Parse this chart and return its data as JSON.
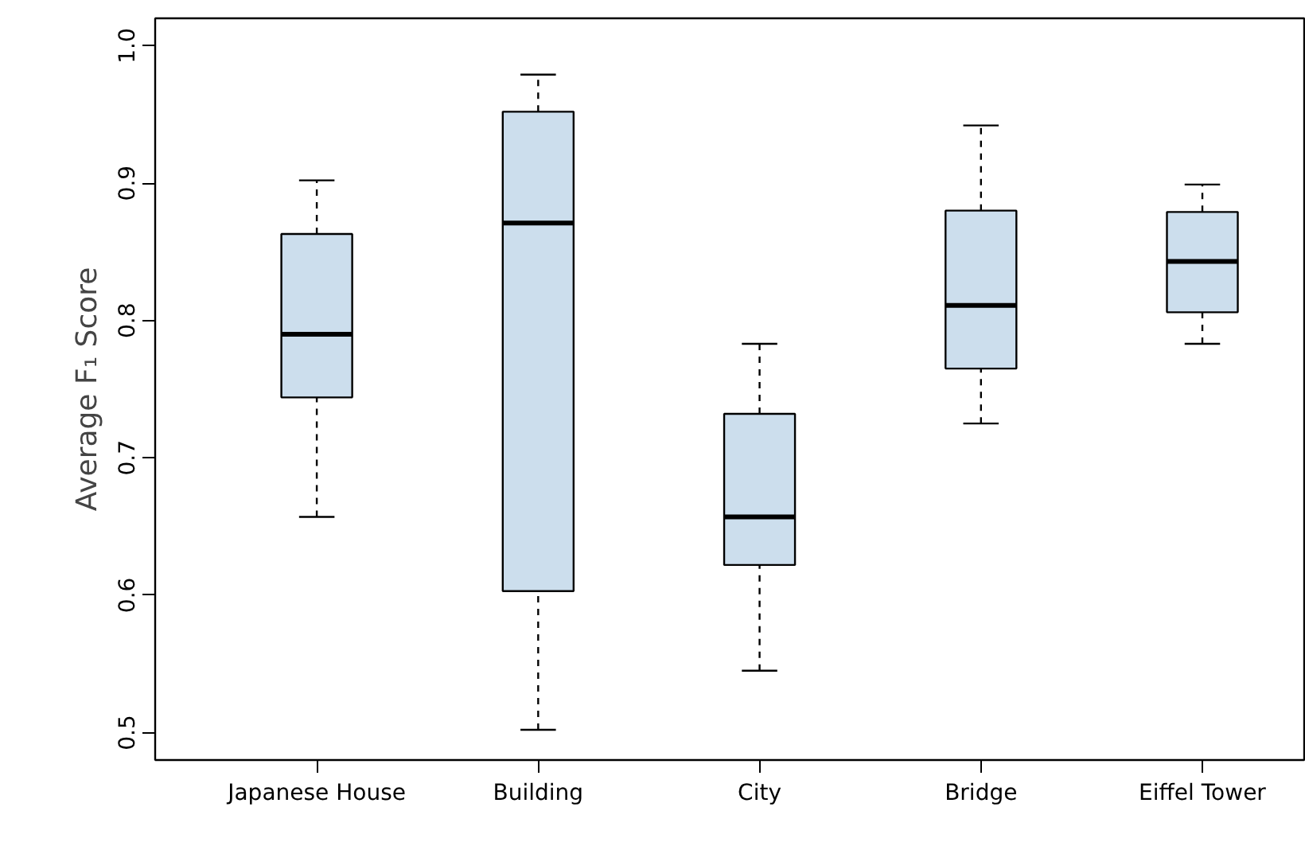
{
  "chart_data": {
    "type": "box",
    "ylabel": "Average F₁ Score",
    "categories": [
      "Japanese House",
      "Building",
      "City",
      "Bridge",
      "Eiffel Tower"
    ],
    "color": "#ccdeed",
    "boxes": [
      {
        "low": 0.657,
        "q1": 0.744,
        "median": 0.79,
        "q3": 0.863,
        "high": 0.902
      },
      {
        "low": 0.502,
        "q1": 0.603,
        "median": 0.871,
        "q3": 0.952,
        "high": 0.979
      },
      {
        "low": 0.545,
        "q1": 0.622,
        "median": 0.657,
        "q3": 0.732,
        "high": 0.783
      },
      {
        "low": 0.725,
        "q1": 0.765,
        "median": 0.811,
        "q3": 0.88,
        "high": 0.942
      },
      {
        "low": 0.783,
        "q1": 0.806,
        "median": 0.843,
        "q3": 0.879,
        "high": 0.899
      }
    ],
    "ylim": [
      0.48,
      1.02
    ],
    "yticks": [
      0.5,
      0.6,
      0.7,
      0.8,
      0.9,
      {
        "value": 1,
        "label": "1.0"
      }
    ],
    "grid": false
  }
}
